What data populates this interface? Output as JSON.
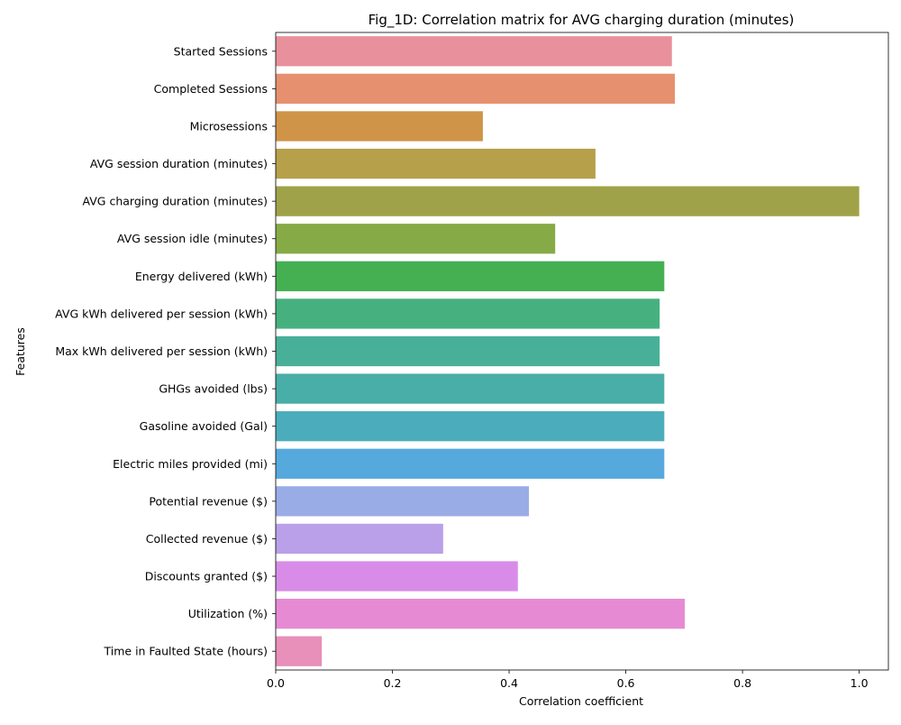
{
  "chart_data": {
    "type": "bar",
    "orientation": "horizontal",
    "title": "Fig_1D: Correlation matrix for AVG charging duration (minutes)",
    "xlabel": "Correlation coefficient",
    "ylabel": "Features",
    "xlim": [
      0.0,
      1.05
    ],
    "xticks": [
      0.0,
      0.2,
      0.4,
      0.6,
      0.8,
      1.0
    ],
    "xtick_labels": [
      "0.0",
      "0.2",
      "0.4",
      "0.6",
      "0.8",
      "1.0"
    ],
    "grid": false,
    "categories": [
      "Started Sessions",
      "Completed Sessions",
      "Microsessions",
      "AVG session duration (minutes)",
      "AVG charging duration (minutes)",
      "AVG session idle (minutes)",
      "Energy delivered (kWh)",
      "AVG kWh delivered per session (kWh)",
      "Max kWh delivered per session (kWh)",
      "GHGs avoided (lbs)",
      "Gasoline avoided (Gal)",
      "Electric miles provided (mi)",
      "Potential revenue ($)",
      "Collected revenue ($)",
      "Discounts granted ($)",
      "Utilization (%)",
      "Time in Faulted State (hours)"
    ],
    "values": [
      0.679,
      0.684,
      0.355,
      0.548,
      1.0,
      0.479,
      0.666,
      0.658,
      0.658,
      0.666,
      0.666,
      0.666,
      0.434,
      0.287,
      0.415,
      0.701,
      0.079
    ],
    "colors": [
      "#e8909b",
      "#e6906f",
      "#d09448",
      "#b6a04a",
      "#9fa248",
      "#86ab46",
      "#45b052",
      "#46b17f",
      "#48b098",
      "#49aea7",
      "#4badbb",
      "#56a9dd",
      "#99ace6",
      "#baa0e9",
      "#d88ce8",
      "#e68bd3",
      "#e88fba"
    ]
  }
}
